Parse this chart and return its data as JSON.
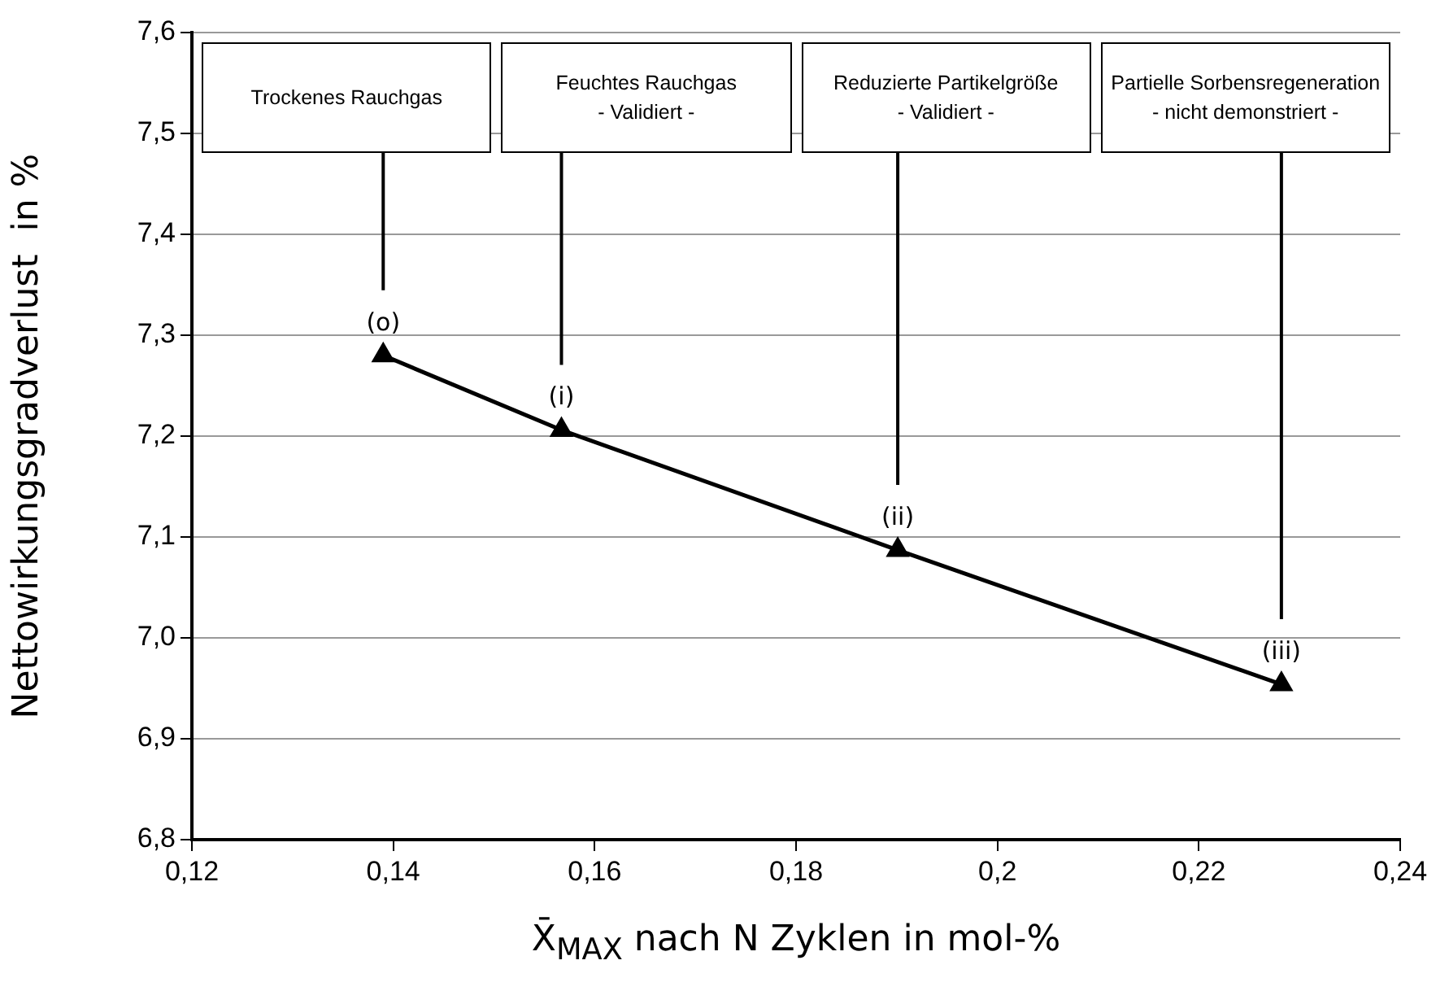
{
  "chart_data": {
    "type": "line",
    "xlabel": "X̄$_{MAX}$ nach N Zyklen in mol-%",
    "ylabel": "Nettowirkungsgradverlust  in %",
    "x": [
      0.139,
      0.1567,
      0.1901,
      0.2282
    ],
    "series": [
      {
        "color": "#000000",
        "values": [
          7.28,
          7.206,
          7.087,
          6.954
        ],
        "value_labels": [
          "(o)",
          "(i)",
          "(ii)",
          "(iii)"
        ]
      }
    ],
    "xlim": [
      0.12,
      0.24
    ],
    "xticks": [
      {
        "value": 0.12,
        "label": "0,12"
      },
      {
        "value": 0.14,
        "label": "0,14"
      },
      {
        "value": 0.16,
        "label": "0,16"
      },
      {
        "value": 0.18,
        "label": "0,18"
      },
      {
        "value": 0.2,
        "label": "0,2"
      },
      {
        "value": 0.22,
        "label": "0,22"
      },
      {
        "value": 0.24,
        "label": "0,24"
      }
    ],
    "ylim": [
      6.8,
      7.6
    ],
    "yticks": [
      {
        "value": 6.8,
        "label": "6,8"
      },
      {
        "value": 6.9,
        "label": "6,9"
      },
      {
        "value": 7.0,
        "label": "7,0"
      },
      {
        "value": 7.1,
        "label": "7,1"
      },
      {
        "value": 7.2,
        "label": "7,2"
      },
      {
        "value": 7.3,
        "label": "7,3"
      },
      {
        "value": 7.4,
        "label": "7,4"
      },
      {
        "value": 7.5,
        "label": "7,5"
      },
      {
        "value": 7.6,
        "label": "7,6"
      }
    ],
    "grid": "y",
    "marker": "triangle",
    "line_style": "solid",
    "legend": false,
    "annotations": [
      "Trockenes Rauchgas",
      "Feuchtes Rauchgas\n- Validiert -",
      "Reduzierte Partikelgröße\n- Validiert -",
      "Partielle Sorbensregeneration\n- nicht demonstriert -"
    ]
  }
}
